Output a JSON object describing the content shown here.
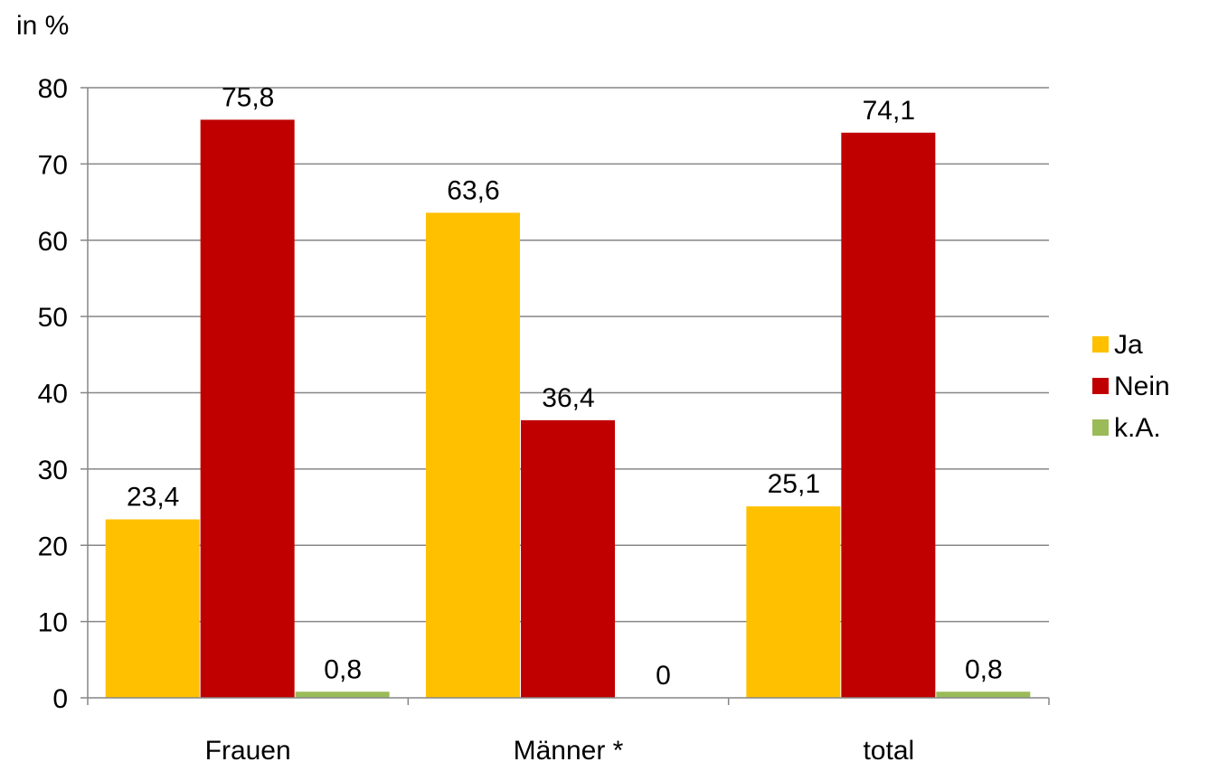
{
  "chart_data": {
    "type": "bar",
    "ylabel": "in %",
    "categories": [
      "Frauen",
      "Männer *",
      "total"
    ],
    "ylim": [
      0,
      80
    ],
    "yticks": [
      0,
      10,
      20,
      30,
      40,
      50,
      60,
      70,
      80
    ],
    "grid": true,
    "legend_position": "right",
    "series": [
      {
        "name": "Ja",
        "color": "#FFC000",
        "values": [
          23.4,
          63.6,
          25.1
        ],
        "labels": [
          "23,4",
          "63,6",
          "25,1"
        ]
      },
      {
        "name": "Nein",
        "color": "#C00000",
        "values": [
          75.8,
          36.4,
          74.1
        ],
        "labels": [
          "75,8",
          "36,4",
          "74,1"
        ]
      },
      {
        "name": "k.A.",
        "color": "#9BBB59",
        "values": [
          0.8,
          0,
          0.8
        ],
        "labels": [
          "0,8",
          "0",
          "0,8"
        ]
      }
    ]
  }
}
